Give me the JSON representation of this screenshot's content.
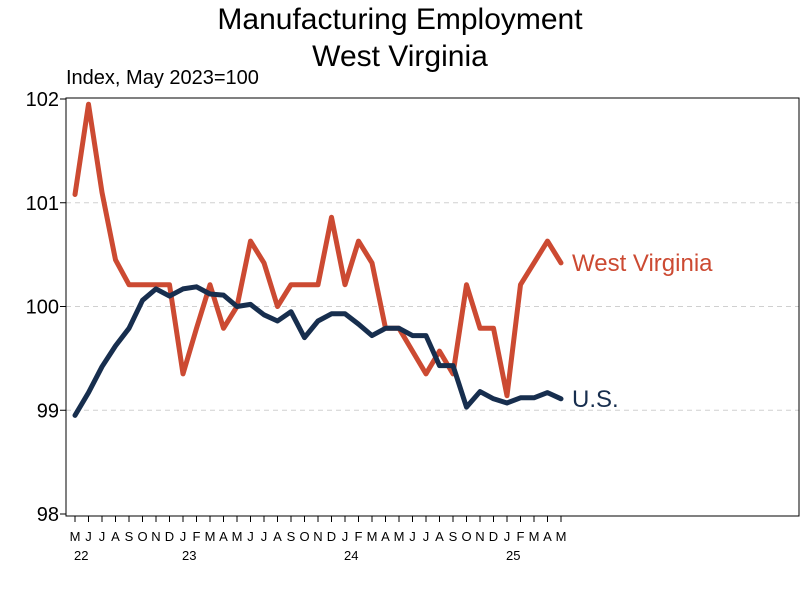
{
  "chart_data": {
    "type": "line",
    "title": "Manufacturing Employment",
    "subtitle": "West Virginia",
    "ylabel": "Index, May 2023=100",
    "ylim": [
      98,
      102
    ],
    "yticks": [
      "98",
      "99",
      "100",
      "101",
      "102"
    ],
    "grid": "horizontal dashed",
    "x": [
      "M",
      "J",
      "J",
      "A",
      "S",
      "O",
      "N",
      "D",
      "J",
      "F",
      "M",
      "A",
      "M",
      "J",
      "J",
      "A",
      "S",
      "O",
      "N",
      "D",
      "J",
      "F",
      "M",
      "A",
      "M",
      "J",
      "J",
      "A",
      "S",
      "O",
      "N",
      "D",
      "J",
      "F",
      "M",
      "A",
      "M"
    ],
    "x_year_labels": [
      {
        "label": "22",
        "index": 0
      },
      {
        "label": "23",
        "index": 8
      },
      {
        "label": "24",
        "index": 20
      },
      {
        "label": "25",
        "index": 32
      }
    ],
    "series": [
      {
        "name": "West Virginia",
        "color": "#cc4a32",
        "values": [
          101.08,
          101.95,
          101.1,
          100.45,
          100.21,
          100.21,
          100.21,
          100.21,
          99.35,
          99.79,
          100.21,
          99.79,
          100.0,
          100.63,
          100.42,
          100.0,
          100.21,
          100.21,
          100.21,
          100.86,
          100.21,
          100.63,
          100.42,
          99.79,
          99.79,
          99.57,
          99.35,
          99.57,
          99.35,
          100.21,
          99.79,
          99.79,
          99.14,
          100.21,
          100.42,
          100.63,
          100.42
        ]
      },
      {
        "name": "U.S.",
        "color": "#172e4e",
        "values": [
          98.95,
          99.17,
          99.42,
          99.62,
          99.79,
          100.06,
          100.17,
          100.1,
          100.17,
          100.19,
          100.12,
          100.11,
          100.0,
          100.02,
          99.92,
          99.86,
          99.95,
          99.7,
          99.86,
          99.93,
          99.93,
          99.83,
          99.72,
          99.79,
          99.79,
          99.72,
          99.72,
          99.43,
          99.43,
          99.03,
          99.18,
          99.11,
          99.07,
          99.12,
          99.12,
          99.17,
          99.11
        ]
      }
    ]
  }
}
